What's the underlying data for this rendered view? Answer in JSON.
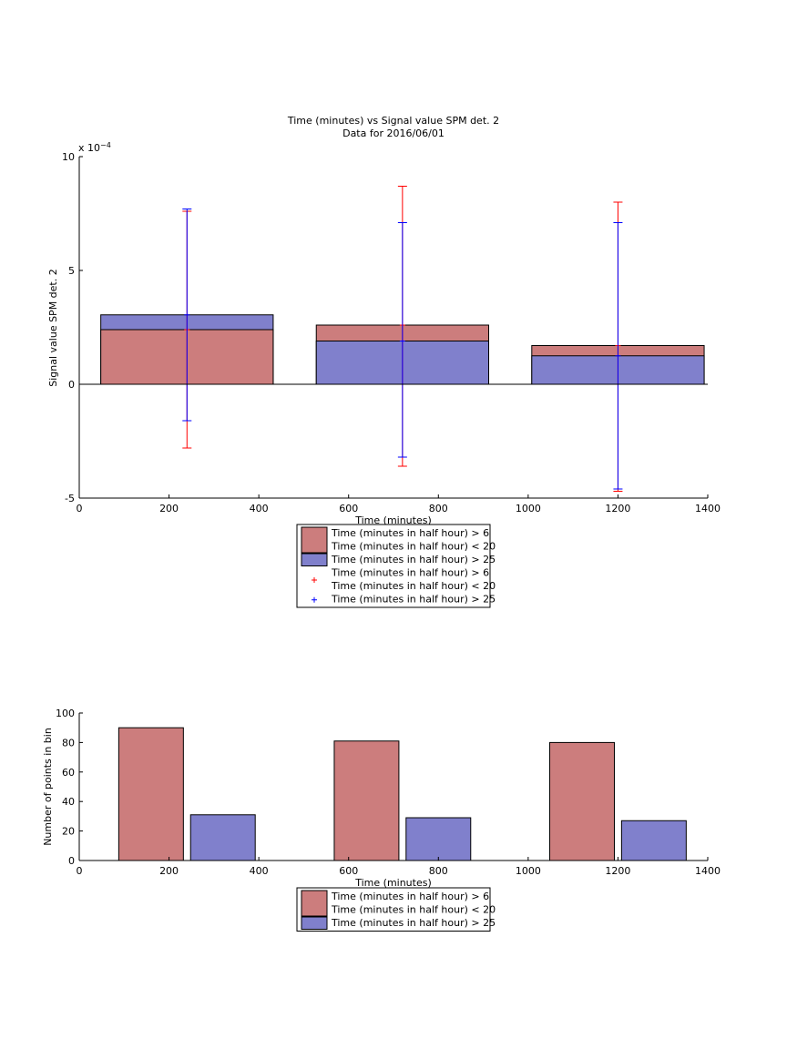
{
  "colors": {
    "red_fill": "#cc7d7d",
    "blue_fill": "#8080cc",
    "red_line": "#ff0000",
    "blue_line": "#0000ff",
    "edge": "#000000"
  },
  "chart_data": [
    {
      "type": "bar",
      "title": "Time (minutes) vs Signal value SPM det. 2",
      "subtitle": "Data for 2016/06/01",
      "xlabel": "Time (minutes)",
      "ylabel": "Signal value SPM det. 2",
      "y_exponent_label": "x 10",
      "y_exponent_power": "−4",
      "y_scale": 0.0001,
      "xlim": [
        0,
        1400
      ],
      "ylim": [
        -5,
        10
      ],
      "xticks": [
        0,
        200,
        400,
        600,
        800,
        1000,
        1200,
        1400
      ],
      "yticks": [
        -5,
        0,
        5,
        10
      ],
      "bar_layout": "overlaid",
      "bar_centers": [
        240,
        720,
        1200
      ],
      "bar_width": 384,
      "series": [
        {
          "name": "Time (minutes in half hour) > 6",
          "name_line2": "Time (minutes in half hour) < 20",
          "values": [
            2.4,
            2.6,
            1.7
          ],
          "errors": [
            [
              -2.8,
              7.6
            ],
            [
              -3.6,
              8.7
            ],
            [
              -4.7,
              8.0
            ]
          ],
          "color": "red"
        },
        {
          "name": "Time (minutes in half hour) > 25",
          "values": [
            3.05,
            1.9,
            1.25
          ],
          "errors": [
            [
              -1.6,
              7.7
            ],
            [
              -3.2,
              7.1
            ],
            [
              -4.6,
              7.1
            ]
          ],
          "color": "blue"
        }
      ],
      "legend": "below"
    },
    {
      "type": "bar",
      "title": "",
      "xlabel": "Time (minutes)",
      "ylabel": "Number of points in bin",
      "xlim": [
        0,
        1400
      ],
      "ylim": [
        0,
        100
      ],
      "xticks": [
        0,
        200,
        400,
        600,
        800,
        1000,
        1200,
        1400
      ],
      "yticks": [
        0,
        20,
        40,
        60,
        80,
        100
      ],
      "bar_layout": "grouped",
      "bar_centers": [
        [
          160,
          640,
          1120
        ],
        [
          320,
          800,
          1280
        ]
      ],
      "bar_width": 144,
      "series": [
        {
          "name": "Time (minutes in half hour) > 6",
          "name_line2": "Time (minutes in half hour) < 20",
          "values": [
            90,
            81,
            80
          ],
          "color": "red"
        },
        {
          "name": "Time (minutes in half hour) > 25",
          "values": [
            31,
            29,
            27
          ],
          "color": "blue"
        }
      ],
      "legend": "below"
    }
  ]
}
